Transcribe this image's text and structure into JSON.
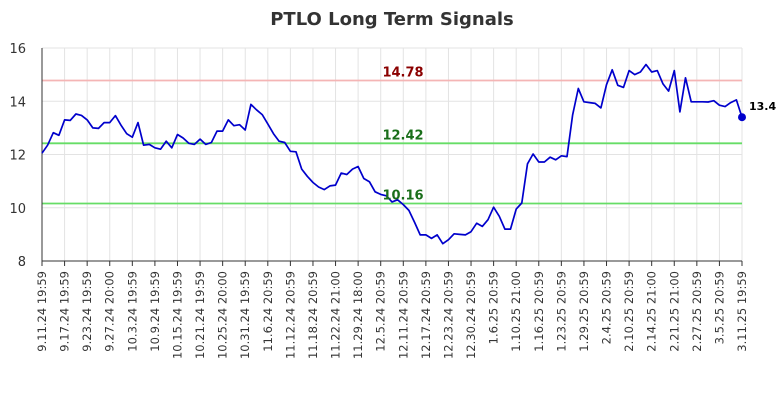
{
  "chart_data": {
    "type": "line",
    "title": "PTLO Long Term Signals",
    "ylim": [
      8,
      16
    ],
    "yticks": [
      8,
      10,
      12,
      14,
      16
    ],
    "grid": true,
    "line_color": "#0000cc",
    "x_tick_labels": [
      "9.11.24 19:59",
      "9.17.24 19:59",
      "9.23.24 19:59",
      "9.27.24 20:00",
      "10.3.24 19:59",
      "10.9.24 19:59",
      "10.15.24 19:59",
      "10.21.24 19:59",
      "10.25.24 20:00",
      "10.31.24 19:59",
      "11.6.24 20:59",
      "11.12.24 20:59",
      "11.18.24 20:59",
      "11.22.24 21:00",
      "11.29.24 18:00",
      "12.5.24 20:59",
      "12.11.24 20:59",
      "12.17.24 20:59",
      "12.23.24 20:59",
      "12.30.24 20:59",
      "1.6.25 20:59",
      "1.10.25 21:00",
      "1.16.25 20:59",
      "1.23.25 20:59",
      "1.29.25 20:59",
      "2.4.25 20:59",
      "2.10.25 20:59",
      "2.14.25 21:00",
      "2.21.25 21:00",
      "2.27.25 20:59",
      "3.5.25 20:59",
      "3.11.25 19:59"
    ],
    "values": [
      12.05,
      12.35,
      12.82,
      12.72,
      13.3,
      13.28,
      13.52,
      13.47,
      13.3,
      13.0,
      12.98,
      13.2,
      13.2,
      13.46,
      13.1,
      12.78,
      12.65,
      13.2,
      12.35,
      12.38,
      12.25,
      12.2,
      12.5,
      12.25,
      12.75,
      12.62,
      12.42,
      12.38,
      12.58,
      12.38,
      12.45,
      12.88,
      12.88,
      13.3,
      13.08,
      13.12,
      12.92,
      13.88,
      13.68,
      13.5,
      13.15,
      12.78,
      12.5,
      12.45,
      12.12,
      12.1,
      11.45,
      11.18,
      10.95,
      10.78,
      10.68,
      10.82,
      10.85,
      11.3,
      11.25,
      11.45,
      11.55,
      11.1,
      10.98,
      10.6,
      10.5,
      10.45,
      10.22,
      10.3,
      10.12,
      9.9,
      9.45,
      8.98,
      8.98,
      8.85,
      8.98,
      8.65,
      8.8,
      9.02,
      9.0,
      8.98,
      9.1,
      9.42,
      9.3,
      9.55,
      10.02,
      9.68,
      9.2,
      9.2,
      9.95,
      10.18,
      11.65,
      12.02,
      11.72,
      11.72,
      11.9,
      11.8,
      11.95,
      11.92,
      13.48,
      14.48,
      13.98,
      13.95,
      13.92,
      13.75,
      14.62,
      15.18,
      14.6,
      14.52,
      15.15,
      15.0,
      15.1,
      15.38,
      15.1,
      15.15,
      14.65,
      14.38,
      15.15,
      13.6,
      14.88,
      13.98,
      13.98,
      13.98,
      13.97,
      14.02,
      13.85,
      13.8,
      13.95,
      14.05,
      13.4
    ],
    "reference_lines": [
      {
        "value": 14.78,
        "label": "14.78",
        "color": "#f4b5b5",
        "label_color": "#8b0000"
      },
      {
        "value": 12.42,
        "label": "12.42",
        "color": "#66dd66",
        "label_color": "#1a6e1a"
      },
      {
        "value": 10.16,
        "label": "10.16",
        "color": "#66dd66",
        "label_color": "#1a6e1a"
      }
    ],
    "last_value_label": "13.4"
  }
}
